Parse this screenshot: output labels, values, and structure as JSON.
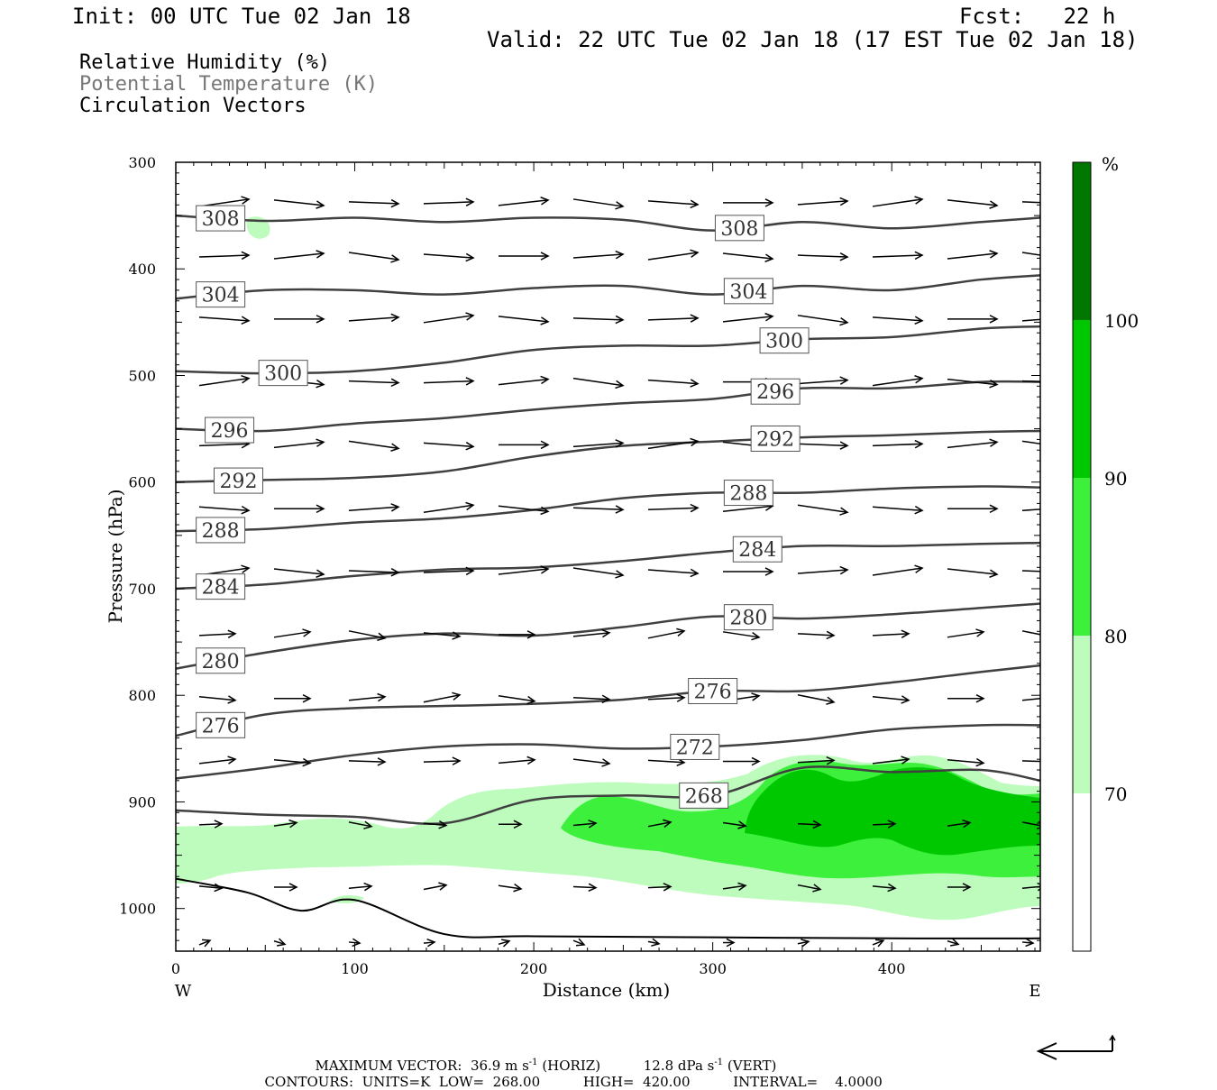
{
  "header": {
    "init": "Init: 00 UTC Tue 02 Jan 18",
    "fcst": "Fcst:   22 h",
    "valid": "Valid: 22 UTC Tue 02 Jan 18 (17 EST Tue 02 Jan 18)"
  },
  "fields": {
    "rh": "Relative Humidity (%)",
    "theta": "Potential Temperature (K)",
    "vectors": "Circulation Vectors"
  },
  "colors": {
    "rh_70_80": "#bdfcbd",
    "rh_80_90": "#3cf03c",
    "rh_90_100": "#00c800",
    "rh_100": "#007800",
    "contour": "#404040",
    "theta_text": "#777777"
  },
  "footer": {
    "max_vector_label": "MAXIMUM VECTOR:",
    "max_horiz": "36.9 m s",
    "horiz_unit": "(HORIZ)",
    "max_vert": "12.8 dPa s",
    "vert_unit": "(VERT)",
    "exp": "-1",
    "contours_label": "CONTOURS:",
    "units": "UNITS=K",
    "low_label": "LOW=",
    "low": "268.00",
    "high_label": "HIGH=",
    "high": "420.00",
    "interval_label": "INTERVAL=",
    "interval": "4.0000"
  },
  "chart_data": {
    "type": "contour",
    "xlabel": "Distance (km)",
    "ylabel": "Pressure (hPa)",
    "xlim": [
      0,
      483
    ],
    "ylim": [
      1040,
      300
    ],
    "x_ticks": [
      "0",
      "100",
      "200",
      "300",
      "400"
    ],
    "y_ticks": [
      "300",
      "400",
      "500",
      "600",
      "700",
      "800",
      "900",
      "1000"
    ],
    "x_end_labels": {
      "west": "W",
      "east": "E"
    },
    "colorbar": {
      "unit": "%",
      "levels": [
        "70",
        "80",
        "90",
        "100"
      ],
      "colors": [
        "#ffffff",
        "#bdfcbd",
        "#3cf03c",
        "#00c800",
        "#007800"
      ]
    },
    "theta_contours": [
      {
        "label": "308",
        "x": [
          0,
          50,
          100,
          150,
          200,
          250,
          300,
          350,
          400,
          450,
          483
        ],
        "p": [
          350,
          355,
          352,
          356,
          352,
          354,
          364,
          356,
          362,
          356,
          352
        ]
      },
      {
        "label": "304",
        "x": [
          0,
          50,
          100,
          150,
          200,
          250,
          300,
          350,
          400,
          450,
          483
        ],
        "p": [
          428,
          420,
          420,
          424,
          418,
          416,
          424,
          416,
          420,
          410,
          406
        ]
      },
      {
        "label": "300",
        "x": [
          0,
          50,
          100,
          150,
          200,
          250,
          300,
          350,
          400,
          450,
          483
        ],
        "p": [
          496,
          498,
          496,
          488,
          476,
          472,
          472,
          466,
          464,
          456,
          454
        ]
      },
      {
        "label": "296",
        "x": [
          0,
          50,
          100,
          150,
          200,
          250,
          300,
          350,
          400,
          450,
          483
        ],
        "p": [
          550,
          552,
          545,
          540,
          532,
          526,
          522,
          512,
          512,
          506,
          506
        ]
      },
      {
        "label": "292",
        "x": [
          0,
          50,
          100,
          150,
          200,
          250,
          300,
          350,
          400,
          450,
          483
        ],
        "p": [
          600,
          598,
          596,
          590,
          576,
          566,
          562,
          558,
          556,
          553,
          552
        ]
      },
      {
        "label": "288",
        "x": [
          0,
          50,
          100,
          150,
          200,
          250,
          300,
          350,
          400,
          450,
          483
        ],
        "p": [
          646,
          644,
          638,
          634,
          626,
          615,
          610,
          610,
          606,
          604,
          605
        ]
      },
      {
        "label": "284",
        "x": [
          0,
          50,
          100,
          150,
          200,
          250,
          300,
          350,
          400,
          450,
          483
        ],
        "p": [
          700,
          696,
          688,
          682,
          680,
          674,
          666,
          660,
          660,
          658,
          657
        ]
      },
      {
        "label": "280",
        "x": [
          0,
          50,
          100,
          150,
          200,
          250,
          300,
          350,
          400,
          450,
          483
        ],
        "p": [
          775,
          760,
          748,
          742,
          744,
          736,
          726,
          728,
          724,
          718,
          714
        ]
      },
      {
        "label": "276",
        "x": [
          0,
          50,
          100,
          150,
          200,
          250,
          300,
          350,
          400,
          450,
          483
        ],
        "p": [
          838,
          818,
          812,
          810,
          808,
          804,
          796,
          796,
          788,
          778,
          772
        ]
      },
      {
        "label": "272",
        "x": [
          0,
          50,
          100,
          150,
          200,
          250,
          300,
          350,
          400,
          450,
          483
        ],
        "p": [
          878,
          868,
          856,
          848,
          846,
          850,
          848,
          842,
          832,
          828,
          828
        ]
      },
      {
        "label": "268",
        "x": [
          0,
          50,
          100,
          150,
          200,
          250,
          300,
          350,
          400,
          450,
          483
        ],
        "p": [
          908,
          912,
          914,
          920,
          898,
          894,
          894,
          868,
          872,
          870,
          880
        ]
      }
    ],
    "ground_surface": {
      "x": [
        0,
        40,
        70,
        100,
        150,
        200,
        300,
        400,
        483
      ],
      "p": [
        972,
        985,
        1002,
        992,
        1024,
        1026,
        1027,
        1028,
        1028
      ]
    }
  }
}
